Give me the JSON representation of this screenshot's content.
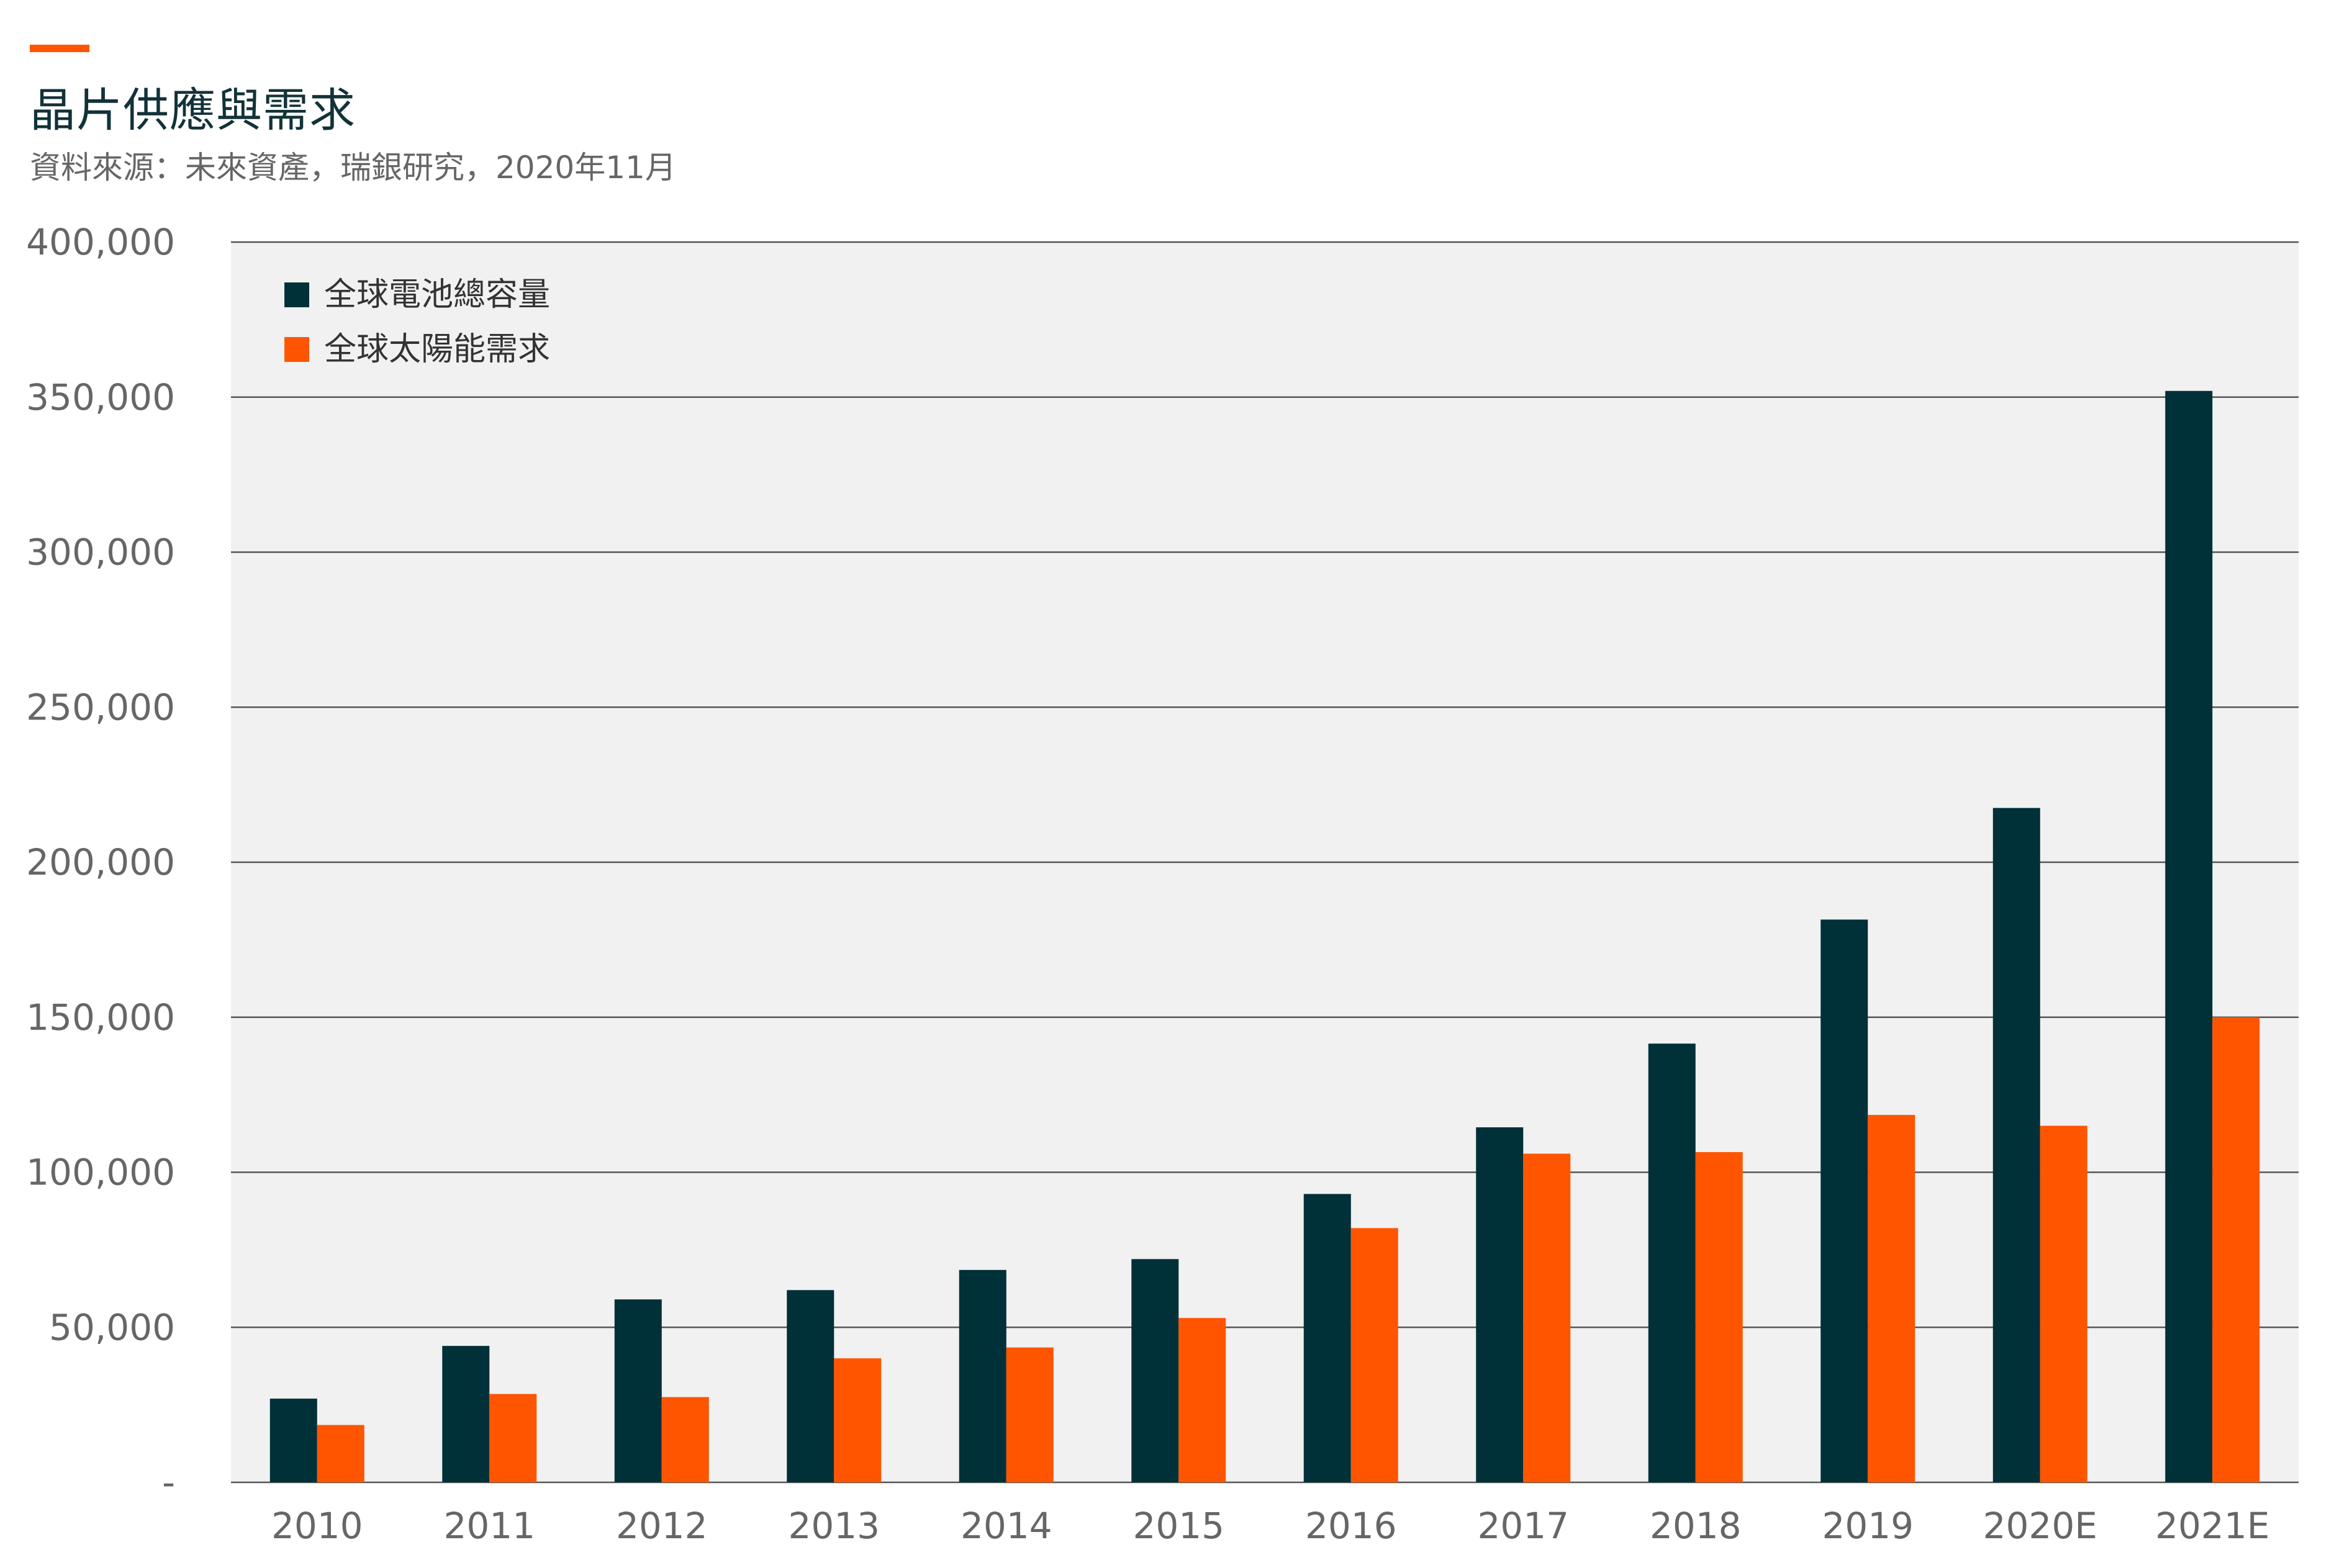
{
  "header": {
    "title": "晶片供應與需求",
    "source": "資料來源：未來資產，瑞銀研究，2020年11月"
  },
  "colors": {
    "accent": "#FF5500",
    "series_dark": "#003038",
    "series_orange": "#FF5500",
    "plot_bg": "#F1F1F1",
    "grid": "#555555"
  },
  "chart_data": {
    "type": "bar",
    "categories": [
      "2010",
      "2011",
      "2012",
      "2013",
      "2014",
      "2015",
      "2016",
      "2017",
      "2018",
      "2019",
      "2020E",
      "2021E"
    ],
    "series": [
      {
        "name": "全球電池總容量",
        "color": "#003038",
        "values": [
          27000,
          44000,
          59000,
          62000,
          68500,
          72000,
          93000,
          114500,
          141500,
          181500,
          217500,
          352000
        ]
      },
      {
        "name": "全球太陽能需求",
        "color": "#FF5500",
        "values": [
          18500,
          28500,
          27500,
          40000,
          43500,
          53000,
          82000,
          106000,
          106500,
          118500,
          115000,
          150000
        ]
      }
    ],
    "ylim": [
      0,
      400000
    ],
    "yticks": [
      0,
      50000,
      100000,
      150000,
      200000,
      250000,
      300000,
      350000,
      400000
    ],
    "ytick_labels": [
      "-",
      "50,000",
      "100,000",
      "150,000",
      "200,000",
      "250,000",
      "300,000",
      "350,000",
      "400,000"
    ],
    "grid": true,
    "legend_position": "top-left"
  }
}
